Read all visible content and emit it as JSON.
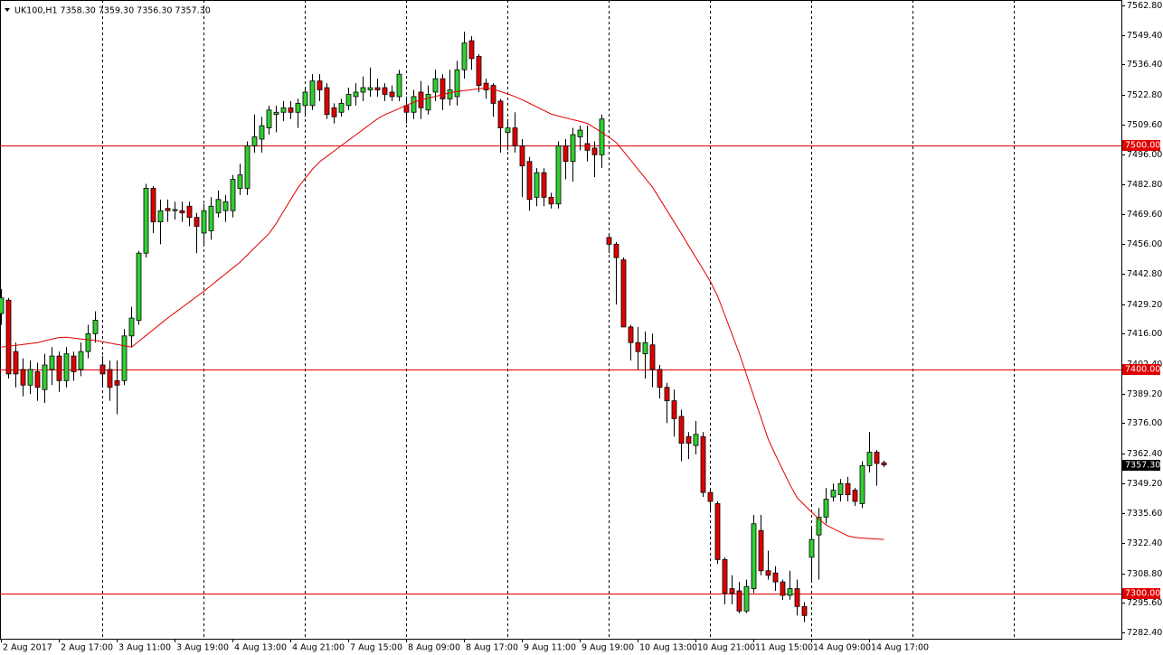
{
  "chart_data": {
    "type": "candlestick",
    "title": "UK100,H1  7358.30 7359.30 7356.30 7357.30",
    "categories": [
      "2 Aug 2017",
      null,
      null,
      null,
      null,
      null,
      null,
      null,
      "2 Aug 17:00",
      null,
      null,
      null,
      null,
      null,
      null,
      null,
      "3 Aug 11:00",
      null,
      null,
      null,
      null,
      null,
      null,
      null,
      "3 Aug 19:00",
      null,
      null,
      null,
      null,
      null,
      null,
      null,
      "4 Aug 13:00",
      null,
      null,
      null,
      null,
      null,
      null,
      null,
      "4 Aug 21:00",
      null,
      null,
      null,
      null,
      null,
      null,
      null,
      "7 Aug 15:00",
      null,
      null,
      null,
      null,
      null,
      null,
      null,
      "8 Aug 09:00",
      null,
      null,
      null,
      null,
      null,
      null,
      null,
      "8 Aug 17:00",
      null,
      null,
      null,
      null,
      null,
      null,
      null,
      "9 Aug 11:00",
      null,
      null,
      null,
      null,
      null,
      null,
      null,
      "9 Aug 19:00",
      null,
      null,
      null,
      null,
      null,
      null,
      null,
      "10 Aug 13:00",
      null,
      null,
      null,
      null,
      null,
      null,
      null,
      "10 Aug 21:00",
      null,
      null,
      null,
      null,
      null,
      null,
      null,
      "11 Aug 15:00",
      null,
      null,
      null,
      null,
      null,
      null,
      null,
      "14 Aug 09:00",
      null,
      null,
      null,
      null,
      null,
      null,
      null,
      "14 Aug 17:00",
      null,
      null
    ],
    "open": [
      7425,
      7431,
      7408,
      7400,
      7393,
      7399,
      7391,
      7400,
      7406,
      7395,
      7406,
      7400,
      7408,
      7416,
      7402,
      7400,
      7395,
      7395,
      7415,
      7422,
      7452,
      7481,
      7466,
      7472,
      7471,
      7471,
      7473,
      7468,
      7461,
      7462,
      7470,
      7471,
      7471,
      7481,
      7481,
      7500,
      7503,
      7508,
      7514,
      7515,
      7517,
      7515,
      7518,
      7518,
      7529,
      7526,
      7517,
      7515,
      7518,
      7522,
      7524,
      7525,
      7526,
      7526,
      7524,
      7522,
      7518,
      7515,
      7524,
      7516,
      7524,
      7530,
      7521,
      7522,
      7534,
      7547,
      7540,
      7528,
      7527,
      7520,
      7506,
      7508,
      7500,
      7493,
      7477,
      7488,
      7477,
      7474,
      7500,
      7493,
      7504,
      7501,
      7499,
      7496,
      7459,
      7456,
      7449,
      7419,
      7412,
      7407,
      7411,
      7400,
      7392,
      7386,
      7379,
      7370,
      7366,
      7370,
      7345,
      7340,
      7315,
      7302,
      7301,
      7292,
      7302,
      7328,
      7310,
      7309,
      7305,
      7299,
      7302,
      7294,
      7316,
      7326,
      7334,
      7343,
      7344,
      7349,
      7346,
      7340,
      7357,
      7363,
      7358.3
    ],
    "high": [
      7436,
      7432,
      7412,
      7405,
      7404,
      7403,
      7407,
      7410,
      7408,
      7410,
      7408,
      7412,
      7420,
      7426,
      7406,
      7404,
      7404,
      7418,
      7428,
      7453,
      7483,
      7482,
      7476,
      7476,
      7475,
      7475,
      7475,
      7470,
      7474,
      7477,
      7480,
      7478,
      7487,
      7492,
      7502,
      7514,
      7513,
      7518,
      7518,
      7520,
      7520,
      7521,
      7526,
      7532,
      7532,
      7528,
      7519,
      7521,
      7526,
      7528,
      7531,
      7535,
      7530,
      7528,
      7527,
      7534,
      7522,
      7525,
      7529,
      7527,
      7534,
      7532,
      7534,
      7538,
      7551,
      7549,
      7541,
      7530,
      7528,
      7521,
      7512,
      7515,
      7503,
      7495,
      7490,
      7490,
      7479,
      7502,
      7503,
      7508,
      7509,
      7509,
      7502,
      7514,
      7460,
      7457,
      7450,
      7420,
      7419,
      7417,
      7416,
      7402,
      7394,
      7391,
      7382,
      7372,
      7377,
      7372,
      7346,
      7341,
      7316,
      7308,
      7305,
      7306,
      7335,
      7335,
      7319,
      7312,
      7306,
      7310,
      7306,
      7296,
      7330,
      7338,
      7347,
      7349,
      7351,
      7352,
      7347,
      7359,
      7372,
      7364,
      7359.3
    ],
    "low": [
      7420,
      7396,
      7392,
      7388,
      7389,
      7386,
      7385,
      7393,
      7390,
      7392,
      7395,
      7397,
      7405,
      7412,
      7392,
      7386,
      7380,
      7393,
      7410,
      7420,
      7450,
      7461,
      7456,
      7466,
      7467,
      7466,
      7464,
      7452,
      7456,
      7458,
      7468,
      7466,
      7468,
      7478,
      7478,
      7497,
      7497,
      7505,
      7506,
      7511,
      7512,
      7508,
      7513,
      7516,
      7520,
      7512,
      7510,
      7513,
      7516,
      7518,
      7520,
      7522,
      7522,
      7520,
      7520,
      7520,
      7510,
      7512,
      7512,
      7514,
      7520,
      7516,
      7518,
      7518,
      7530,
      7534,
      7524,
      7521,
      7513,
      7497,
      7498,
      7497,
      7477,
      7471,
      7473,
      7473,
      7472,
      7472,
      7485,
      7484,
      7498,
      7493,
      7486,
      7490,
      7452,
      7429,
      7419,
      7404,
      7400,
      7396,
      7392,
      7387,
      7376,
      7370,
      7359,
      7360,
      7362,
      7343,
      7336,
      7313,
      7295,
      7295,
      7291,
      7291,
      7300,
      7308,
      7306,
      7301,
      7297,
      7297,
      7290,
      7287,
      7305,
      7306,
      7331,
      7341,
      7341,
      7341,
      7339,
      7338,
      7354,
      7348,
      7356.3
    ],
    "close": [
      7432,
      7398,
      7398,
      7393,
      7400,
      7392,
      7402,
      7406,
      7395,
      7407,
      7399,
      7408,
      7416,
      7422,
      7398,
      7392,
      7393,
      7415,
      7423,
      7452,
      7481,
      7466,
      7471,
      7471,
      7471.5,
      7470,
      7468,
      7464,
      7471,
      7473,
      7476,
      7475,
      7485,
      7487,
      7500,
      7504,
      7509,
      7516,
      7515,
      7517,
      7515,
      7519,
      7524,
      7529,
      7525,
      7514,
      7513,
      7519,
      7523,
      7524,
      7526,
      7526,
      7525,
      7523,
      7522,
      7532,
      7515,
      7522,
      7517,
      7523,
      7530,
      7521,
      7525,
      7534,
      7546,
      7539,
      7527,
      7525,
      7519,
      7508,
      7508,
      7500,
      7491,
      7476,
      7488,
      7477,
      7474,
      7500,
      7493,
      7505,
      7507,
      7498,
      7496,
      7512,
      7456,
      7450,
      7419,
      7412,
      7408,
      7412,
      7400,
      7392,
      7386,
      7378,
      7367,
      7367,
      7371,
      7345,
      7341,
      7315,
      7300,
      7300,
      7292,
      7303,
      7331,
      7310,
      7308,
      7305,
      7299,
      7302,
      7294,
      7290,
      7324,
      7334,
      7342,
      7346,
      7349,
      7344,
      7341,
      7357,
      7363,
      7358,
      7357.3
    ],
    "bull_color": "#32cd32",
    "bear_color": "#e00000",
    "ma": {
      "color": "#e00000",
      "values": [
        7410,
        7410.4,
        7410.8,
        7411.2,
        7411.6,
        7412,
        7412.8,
        7413.6,
        7414.3,
        7414.4,
        7414,
        7413.6,
        7413.3,
        7413,
        7412.4,
        7411.8,
        7411.2,
        7410.6,
        7410,
        7412.6,
        7415.2,
        7417.8,
        7420.4,
        7423,
        7425.4,
        7427.8,
        7430.2,
        7432.6,
        7435,
        7437.6,
        7440.2,
        7442.8,
        7445.4,
        7448,
        7451.2,
        7454.4,
        7457.6,
        7460.8,
        7465.3,
        7470.7,
        7476,
        7481.3,
        7485.5,
        7489.5,
        7492.9,
        7495.3,
        7497.7,
        7500.1,
        7502.5,
        7504.9,
        7507.3,
        7509.7,
        7512.1,
        7513.9,
        7515.3,
        7516.7,
        7518.1,
        7519.5,
        7520.5,
        7521.3,
        7522.1,
        7522.9,
        7523.7,
        7524.3,
        7524.7,
        7525.1,
        7525.5,
        7525.9,
        7525.3,
        7524.3,
        7523.2,
        7522,
        7520.6,
        7519,
        7517.4,
        7515.8,
        7514.2,
        7513.3,
        7512.5,
        7511.7,
        7510.9,
        7510,
        7508,
        7505.9,
        7503.8,
        7501.5,
        7497.5,
        7493.5,
        7489.5,
        7485.5,
        7481.5,
        7476.3,
        7471.1,
        7465.9,
        7460.7,
        7455.3,
        7450,
        7444.7,
        7439.3,
        7432.8,
        7424.3,
        7415.7,
        7407.2,
        7397.6,
        7388,
        7378.4,
        7368.8,
        7361.8,
        7355.1,
        7348.5,
        7342.6,
        7339.4,
        7336.2,
        7333.1,
        7330.4,
        7328.8,
        7327.2,
        7325.6,
        7324.9,
        7324.6,
        7324.4,
        7324.2,
        7324
      ]
    },
    "levels": [
      {
        "value": 7500,
        "label": "7500.00"
      },
      {
        "value": 7400,
        "label": "7400.00"
      },
      {
        "value": 7300,
        "label": "7300.00"
      }
    ],
    "level_color": "#e00000",
    "last": {
      "value": 7357.3,
      "label": "7357.30"
    },
    "ylim": [
      7279.6,
      7565.2
    ],
    "yticks": [
      {
        "value": 7562.8,
        "label": "7562.80"
      },
      {
        "value": 7549.4,
        "label": "7549.40"
      },
      {
        "value": 7536.4,
        "label": "7536.40"
      },
      {
        "value": 7522.8,
        "label": "7522.80"
      },
      {
        "value": 7509.6,
        "label": "7509.60"
      },
      {
        "value": 7496,
        "label": "7496.00"
      },
      {
        "value": 7482.8,
        "label": "7482.80"
      },
      {
        "value": 7469.6,
        "label": "7469.60"
      },
      {
        "value": 7456,
        "label": "7456.00"
      },
      {
        "value": 7442.8,
        "label": "7442.80"
      },
      {
        "value": 7429.2,
        "label": "7429.20"
      },
      {
        "value": 7416,
        "label": "7416.00"
      },
      {
        "value": 7402.4,
        "label": "7402.40"
      },
      {
        "value": 7389.2,
        "label": "7389.20"
      },
      {
        "value": 7376,
        "label": "7376.00"
      },
      {
        "value": 7362.4,
        "label": "7362.40"
      },
      {
        "value": 7349.2,
        "label": "7349.20"
      },
      {
        "value": 7335.6,
        "label": "7335.60"
      },
      {
        "value": 7322.4,
        "label": "7322.40"
      },
      {
        "value": 7308.8,
        "label": "7308.80"
      },
      {
        "value": 7295.6,
        "label": "7295.60"
      },
      {
        "value": 7282.4,
        "label": "7282.40"
      }
    ],
    "grid": true
  }
}
